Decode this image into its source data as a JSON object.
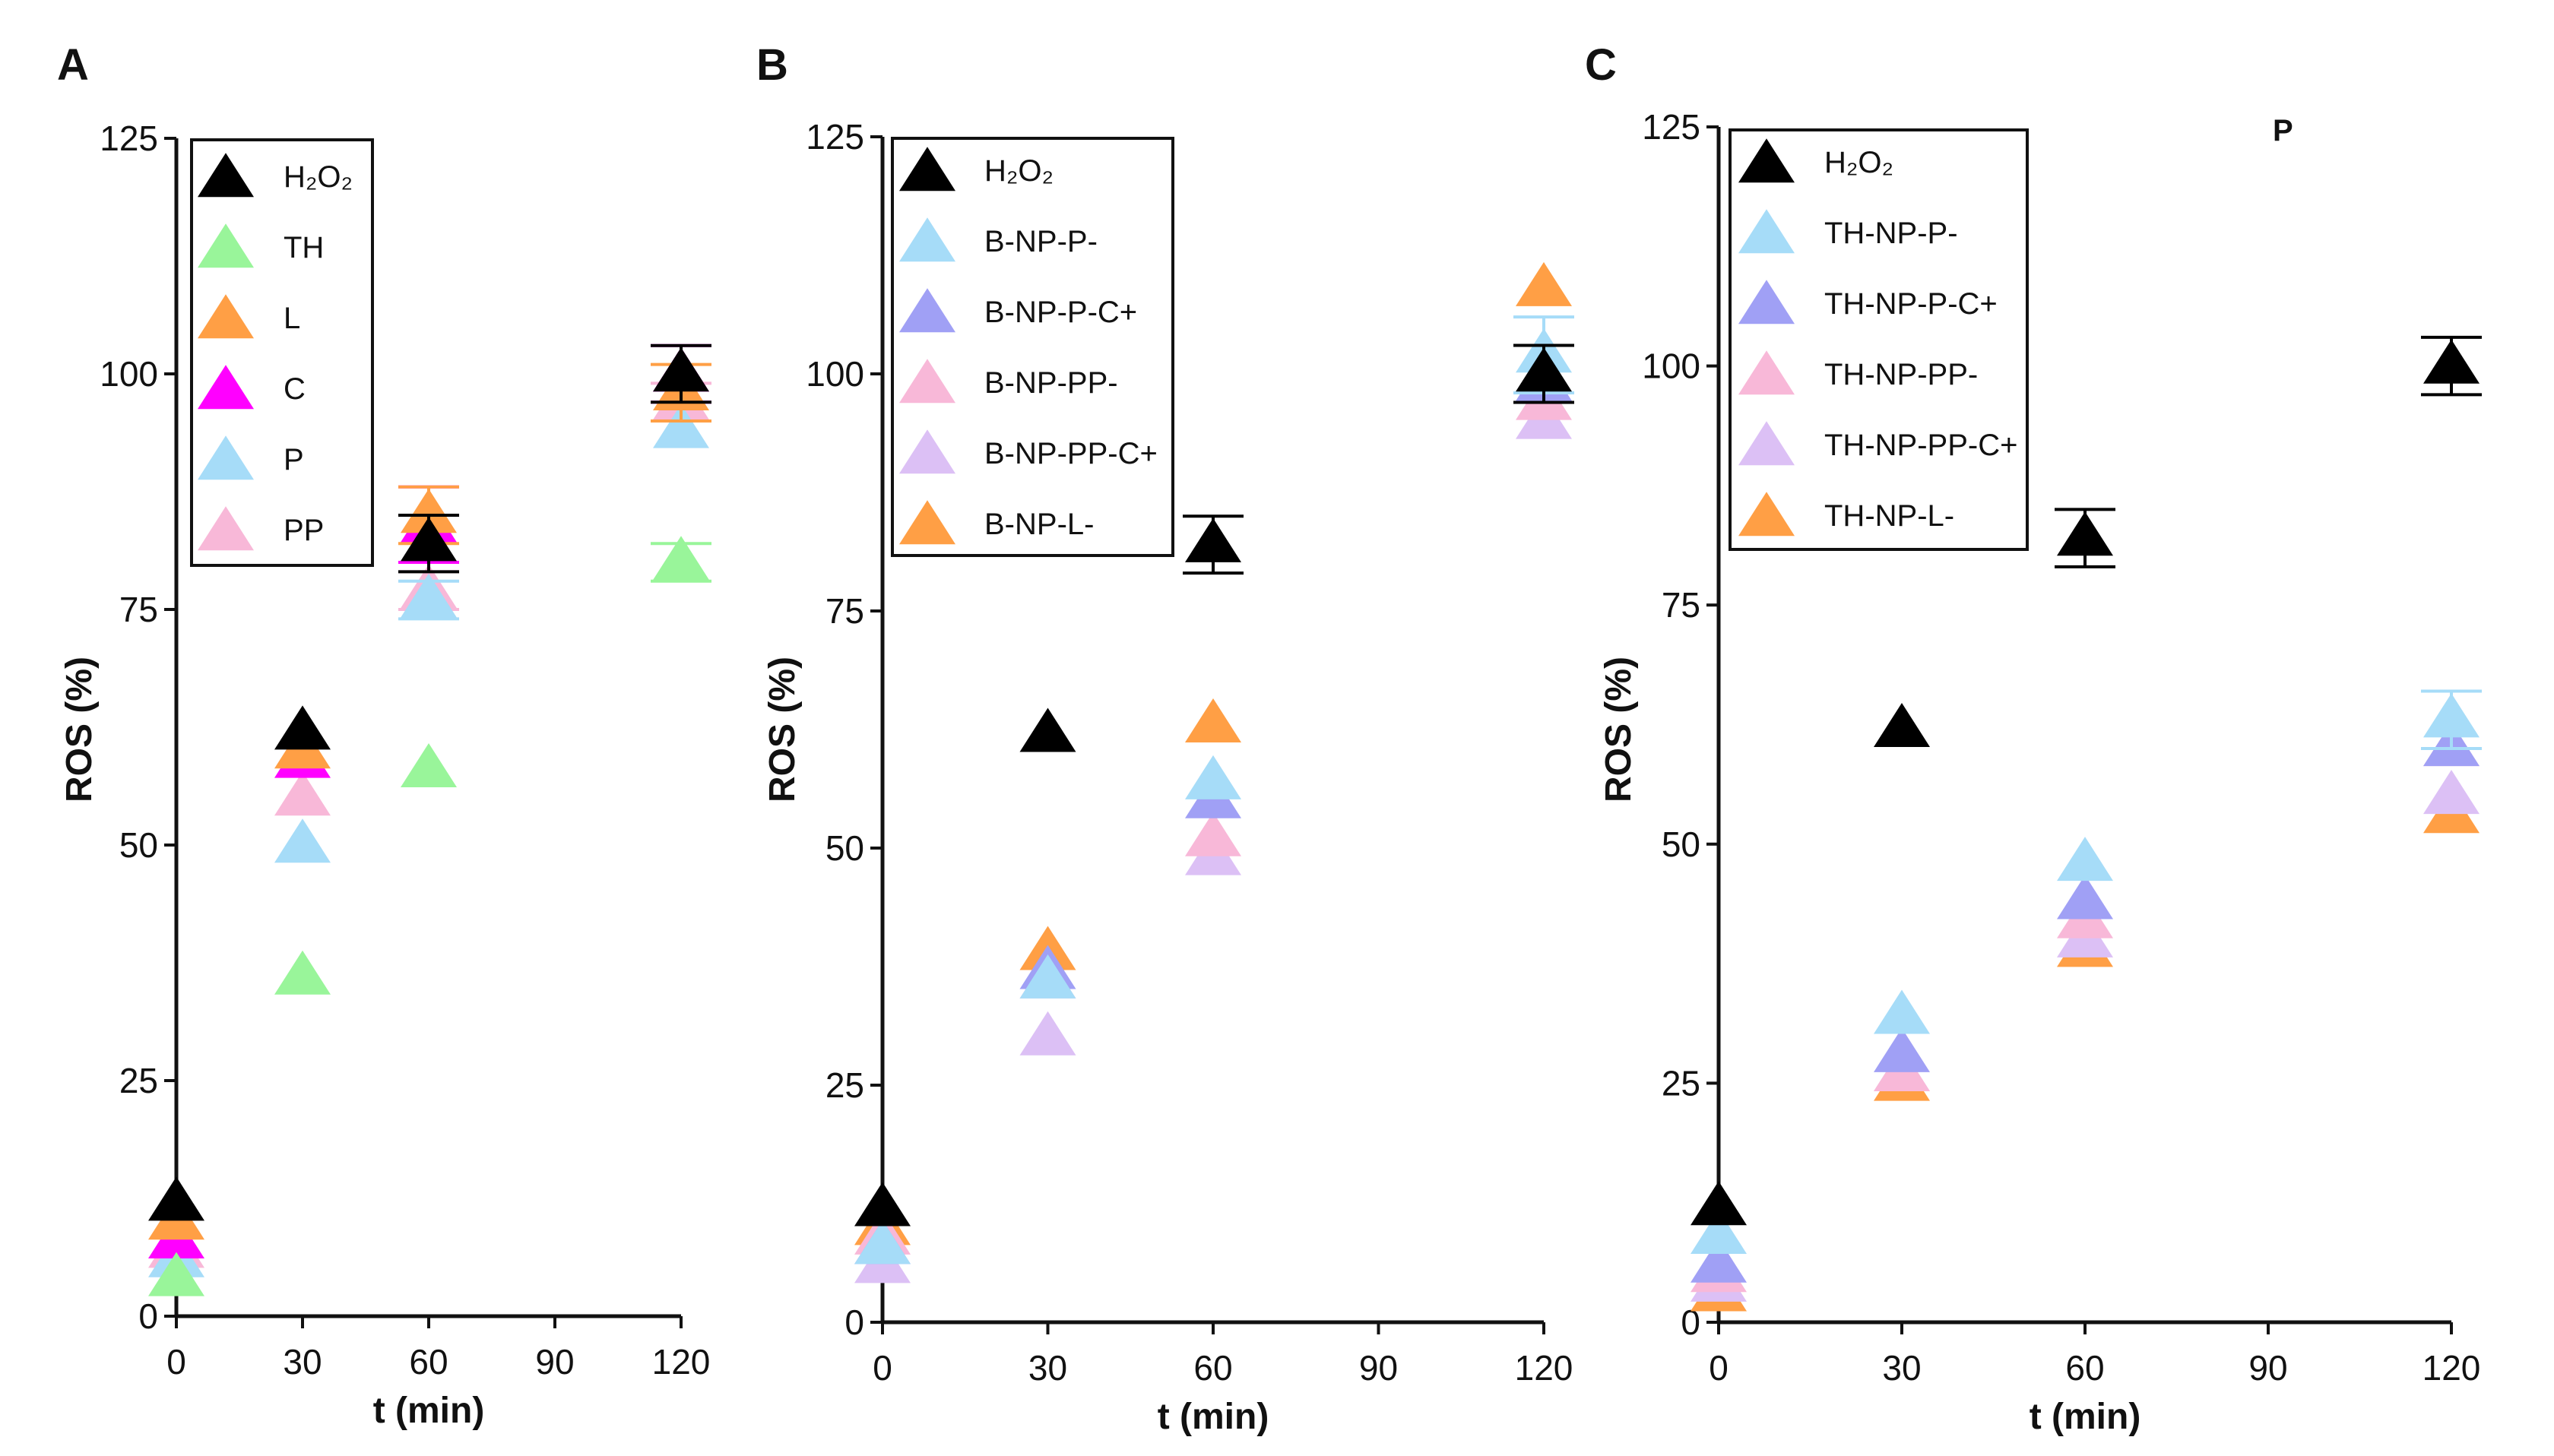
{
  "chart_data": [
    {
      "type": "scatter",
      "panel_label": "A",
      "xlabel": "t (min)",
      "ylabel": "ROS (%)",
      "xlim": [
        0,
        120
      ],
      "ylim": [
        0,
        125
      ],
      "xticks": [
        "0",
        "30",
        "60",
        "90",
        "120"
      ],
      "yticks": [
        "0",
        "25",
        "50",
        "75",
        "100",
        "125"
      ],
      "x": [
        0,
        30,
        60,
        120
      ],
      "legend_position": "top-left",
      "series": [
        {
          "name": "H₂O₂",
          "color": "#000000",
          "values": [
            12,
            62,
            82,
            100
          ],
          "error": [
            0,
            0,
            3,
            3
          ]
        },
        {
          "name": "TH",
          "color": "#99f59a",
          "values": [
            4,
            36,
            58,
            80
          ],
          "error": [
            0,
            0,
            0,
            2
          ]
        },
        {
          "name": "L",
          "color": "#ff9f45",
          "values": [
            10,
            60,
            85,
            98
          ],
          "error": [
            0,
            0,
            3,
            3
          ]
        },
        {
          "name": "C",
          "color": "#ff00ff",
          "values": [
            8,
            59,
            84,
            100
          ],
          "error": [
            0,
            0,
            4,
            3
          ]
        },
        {
          "name": "P",
          "color": "#a6dcf8",
          "values": [
            6,
            50,
            76,
            94
          ],
          "error": [
            0,
            0,
            2,
            0
          ]
        },
        {
          "name": "PP",
          "color": "#f8b8d8",
          "values": [
            7,
            55,
            77,
            97
          ],
          "error": [
            0,
            0,
            2,
            2
          ]
        }
      ]
    },
    {
      "type": "scatter",
      "panel_label": "B",
      "xlabel": "t (min)",
      "ylabel": "ROS (%)",
      "xlim": [
        0,
        120
      ],
      "ylim": [
        0,
        125
      ],
      "xticks": [
        "0",
        "30",
        "60",
        "90",
        "120"
      ],
      "yticks": [
        "0",
        "25",
        "50",
        "75",
        "100",
        "125"
      ],
      "x": [
        0,
        30,
        60,
        120
      ],
      "legend_position": "top-left",
      "series": [
        {
          "name": "H₂O₂",
          "color": "#000000",
          "values": [
            12,
            62,
            82,
            100
          ],
          "error": [
            0,
            0,
            3,
            3
          ]
        },
        {
          "name": "B-NP-P-",
          "color": "#a6dcf8",
          "values": [
            8,
            36,
            57,
            102
          ],
          "error": [
            0,
            0,
            0,
            4
          ]
        },
        {
          "name": "B-NP-P-C+",
          "color": "#a0a0f5",
          "values": [
            8,
            37,
            55,
            99
          ],
          "error": [
            0,
            0,
            0,
            0
          ]
        },
        {
          "name": "B-NP-PP-",
          "color": "#f8b8d8",
          "values": [
            9,
            36,
            51,
            97
          ],
          "error": [
            0,
            0,
            0,
            0
          ]
        },
        {
          "name": "B-NP-PP-C+",
          "color": "#dcc0f5",
          "values": [
            6,
            30,
            49,
            95
          ],
          "error": [
            0,
            0,
            0,
            0
          ]
        },
        {
          "name": "B-NP-L-",
          "color": "#ff9f45",
          "values": [
            10,
            39,
            63,
            109
          ],
          "error": [
            0,
            0,
            0,
            0
          ]
        }
      ]
    },
    {
      "type": "scatter",
      "panel_label": "C",
      "xlabel": "t (min)",
      "ylabel": "ROS (%)",
      "xlim": [
        0,
        120
      ],
      "ylim": [
        0,
        125
      ],
      "xticks": [
        "0",
        "30",
        "60",
        "90",
        "120"
      ],
      "yticks": [
        "0",
        "25",
        "50",
        "75",
        "100",
        "125"
      ],
      "x": [
        0,
        30,
        60,
        120
      ],
      "legend_position": "top-left",
      "annotation": "P",
      "series": [
        {
          "name": "H₂O₂",
          "color": "#000000",
          "values": [
            12,
            62,
            82,
            100
          ],
          "error": [
            0,
            0,
            3,
            3
          ]
        },
        {
          "name": "TH-NP-P-",
          "color": "#a6dcf8",
          "values": [
            9,
            32,
            48,
            63
          ],
          "error": [
            0,
            0,
            0,
            3
          ]
        },
        {
          "name": "TH-NP-P-C+",
          "color": "#a0a0f5",
          "values": [
            6,
            28,
            44,
            60
          ],
          "error": [
            0,
            0,
            0,
            0
          ]
        },
        {
          "name": "TH-NP-PP-",
          "color": "#f8b8d8",
          "values": [
            5,
            26,
            42,
            60
          ],
          "error": [
            0,
            0,
            0,
            0
          ]
        },
        {
          "name": "TH-NP-PP-C+",
          "color": "#dcc0f5",
          "values": [
            4,
            26,
            40,
            55
          ],
          "error": [
            0,
            0,
            0,
            0
          ]
        },
        {
          "name": "TH-NP-L-",
          "color": "#ff9f45",
          "values": [
            3,
            25,
            39,
            53
          ],
          "error": [
            0,
            0,
            0,
            0
          ]
        }
      ]
    }
  ]
}
